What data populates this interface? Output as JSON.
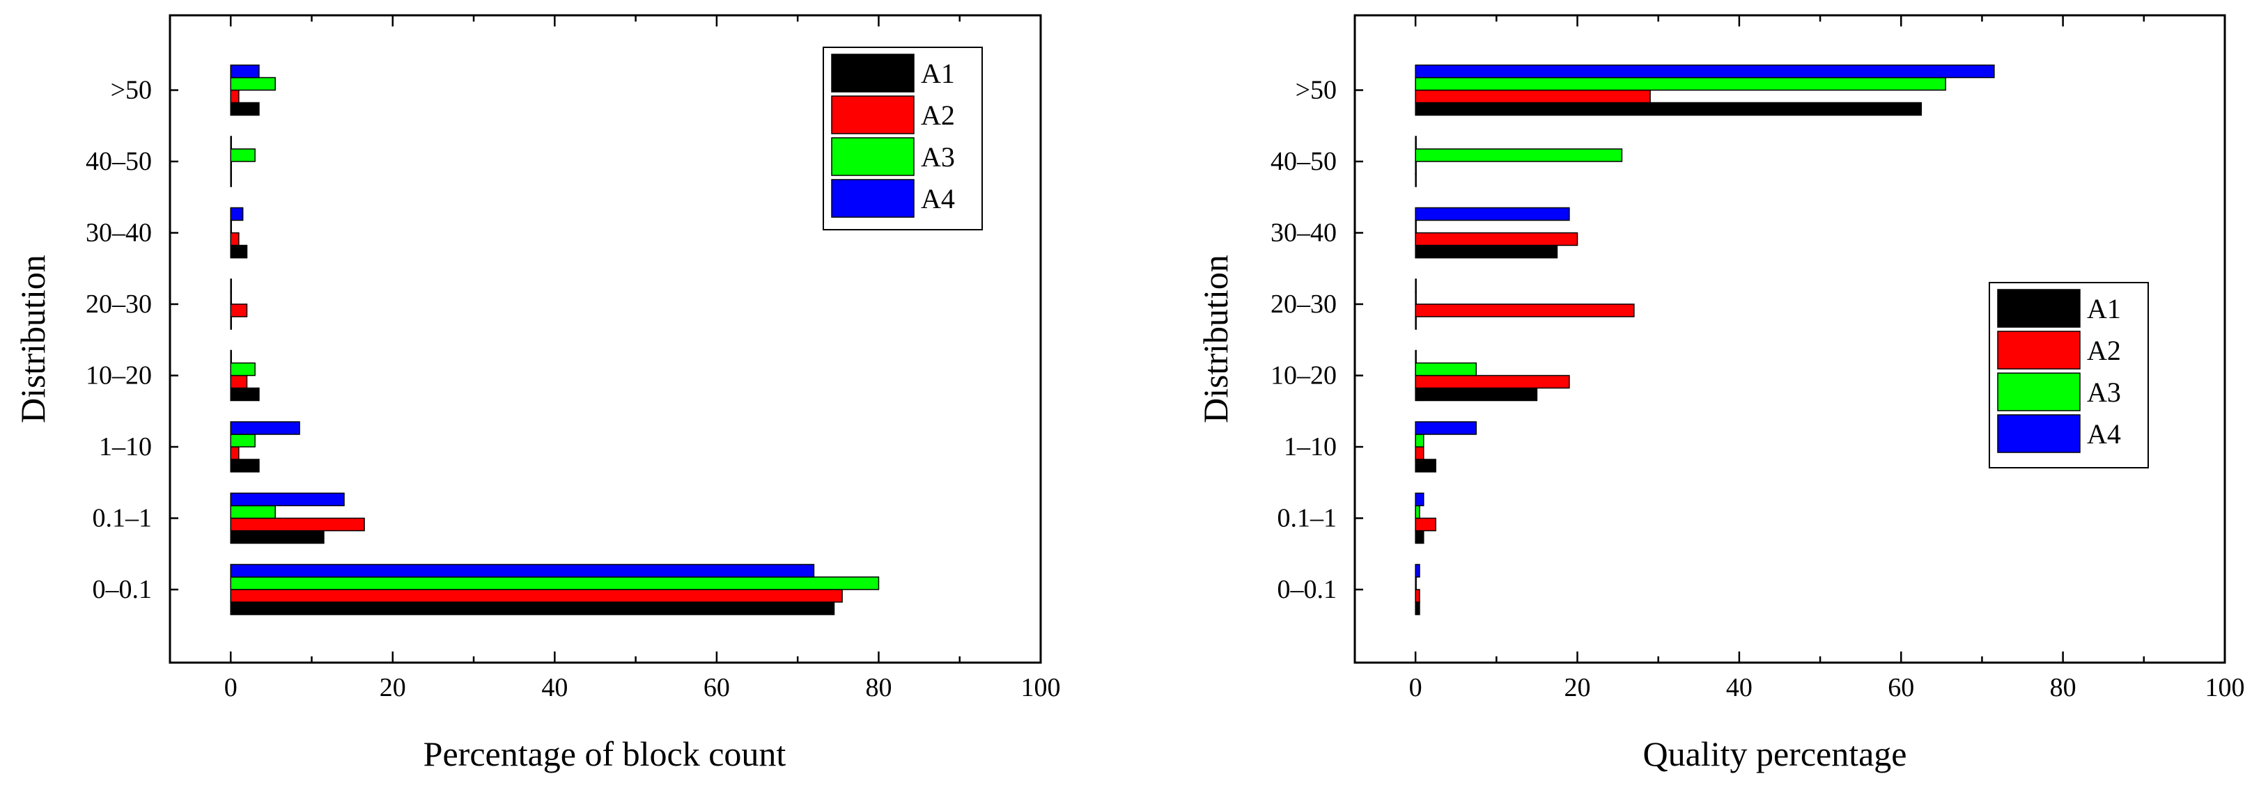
{
  "chart_data": [
    {
      "type": "bar",
      "orientation": "horizontal",
      "xlabel": "Percentage of block count",
      "ylabel": "Distribution",
      "xlim": [
        -7.5,
        100
      ],
      "xticks": [
        0,
        20,
        40,
        60,
        80,
        100
      ],
      "categories": [
        "0–0.1",
        "0.1–1",
        "1–10",
        "10–20",
        "20–30",
        "30–40",
        "40–50",
        ">50"
      ],
      "legend_position": "top-right",
      "series": [
        {
          "name": "A1",
          "color": "#000000",
          "values": [
            74.5,
            11.5,
            3.5,
            3.5,
            0,
            2,
            0,
            3.5
          ]
        },
        {
          "name": "A2",
          "color": "#ff0000",
          "values": [
            75.5,
            16.5,
            1,
            2,
            2,
            1,
            0,
            1
          ]
        },
        {
          "name": "A3",
          "color": "#00ff00",
          "values": [
            80,
            5.5,
            3,
            3,
            0,
            0,
            3,
            5.5
          ]
        },
        {
          "name": "A4",
          "color": "#0000ff",
          "values": [
            72,
            14,
            8.5,
            0,
            0,
            1.5,
            0,
            3.5
          ]
        }
      ]
    },
    {
      "type": "bar",
      "orientation": "horizontal",
      "xlabel": "Quality percentage",
      "ylabel": "Distribution",
      "xlim": [
        -7.5,
        100
      ],
      "xticks": [
        0,
        20,
        40,
        60,
        80,
        100
      ],
      "categories": [
        "0–0.1",
        "0.1–1",
        "1–10",
        "10–20",
        "20–30",
        "30–40",
        "40–50",
        ">50"
      ],
      "legend_position": "center-right",
      "series": [
        {
          "name": "A1",
          "color": "#000000",
          "values": [
            0.5,
            1,
            2.5,
            15,
            0,
            17.5,
            0,
            62.5
          ]
        },
        {
          "name": "A2",
          "color": "#ff0000",
          "values": [
            0.5,
            2.5,
            1,
            19,
            27,
            20,
            0,
            29
          ]
        },
        {
          "name": "A3",
          "color": "#00ff00",
          "values": [
            0,
            0.5,
            1,
            7.5,
            0,
            0,
            25.5,
            65.5
          ]
        },
        {
          "name": "A4",
          "color": "#0000ff",
          "values": [
            0.5,
            1,
            7.5,
            0,
            0,
            19,
            0,
            71.5
          ]
        }
      ]
    }
  ]
}
